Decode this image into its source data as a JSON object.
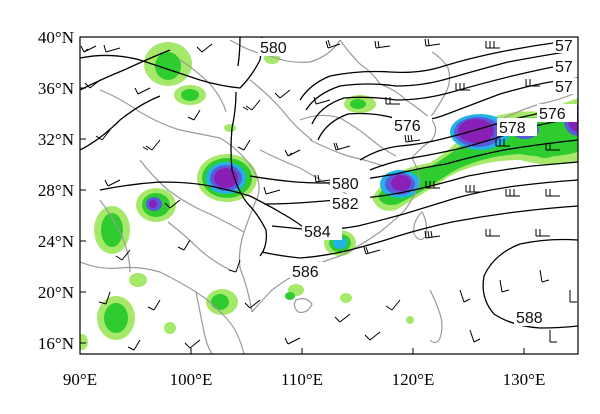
{
  "map": {
    "lat_labels": [
      "40°N",
      "36°N",
      "32°N",
      "28°N",
      "24°N",
      "20°N",
      "16°N"
    ],
    "lon_labels": [
      "90°E",
      "100°E",
      "110°E",
      "120°E",
      "130°E"
    ],
    "lat_range": [
      15,
      40
    ],
    "lon_range": [
      90,
      135
    ],
    "contour_labels": [
      "580",
      "57",
      "57",
      "57",
      "576",
      "576",
      "578",
      "580",
      "582",
      "584",
      "586",
      "588"
    ],
    "contour_color": "#000000",
    "border_color": "#9a9a9a",
    "shading_colors": [
      "#a6e86a",
      "#2ecc2e",
      "#22b3e6",
      "#5a5adc",
      "#8a1fb5"
    ]
  }
}
